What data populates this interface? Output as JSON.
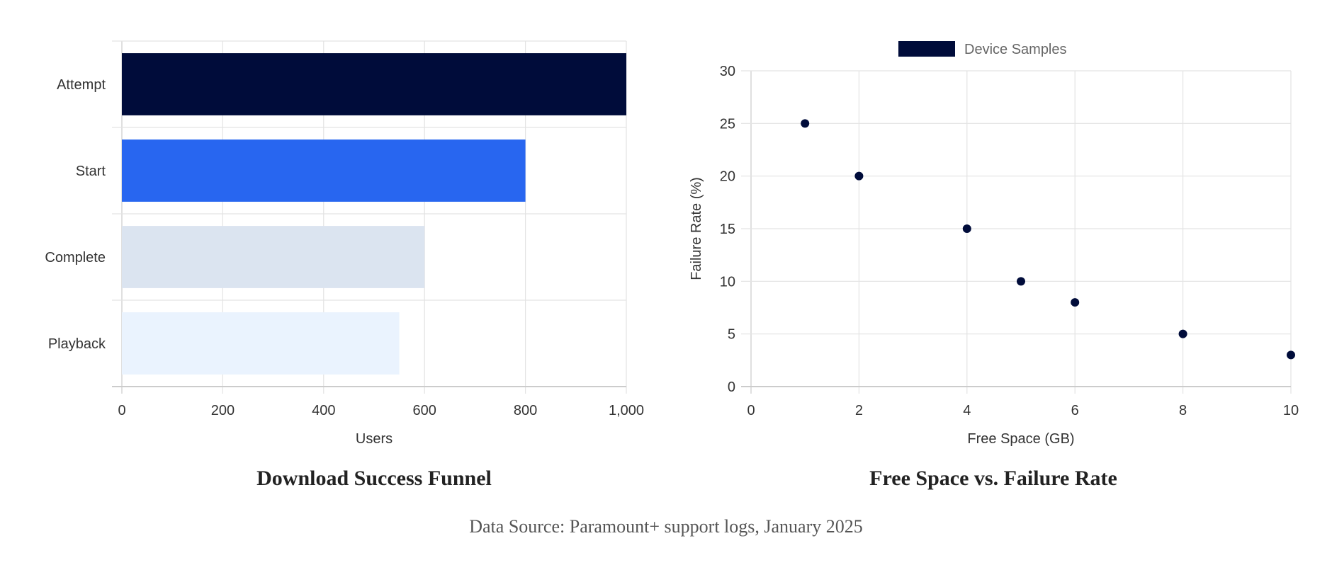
{
  "chart_data": [
    {
      "type": "bar",
      "orientation": "horizontal",
      "title": "Download Success Funnel",
      "xlabel": "Users",
      "ylabel": "",
      "categories": [
        "Attempt",
        "Start",
        "Complete",
        "Playback"
      ],
      "values": [
        1000,
        800,
        600,
        550
      ],
      "colors": [
        "#000c3a",
        "#2866f0",
        "#dbe4f0",
        "#eaf3fe"
      ],
      "xlim": [
        0,
        1000
      ],
      "xticks": [
        0,
        200,
        400,
        600,
        800,
        1000
      ],
      "xtick_labels": [
        "0",
        "200",
        "400",
        "600",
        "800",
        "1,000"
      ],
      "grid": true,
      "legend": "none"
    },
    {
      "type": "scatter",
      "title": "Free Space vs. Failure Rate",
      "xlabel": "Free Space (GB)",
      "ylabel": "Failure Rate (%)",
      "series": [
        {
          "name": "Device Samples",
          "color": "#000c3a",
          "x": [
            1,
            2,
            4,
            5,
            6,
            8,
            10
          ],
          "y": [
            25,
            20,
            15,
            10,
            8,
            5,
            3
          ]
        }
      ],
      "xlim": [
        0,
        10
      ],
      "ylim": [
        0,
        30
      ],
      "xticks": [
        "0",
        "2",
        "4",
        "6",
        "8",
        "10"
      ],
      "yticks": [
        "0",
        "5",
        "10",
        "15",
        "20",
        "25",
        "30"
      ],
      "grid": true,
      "legend": "top"
    }
  ],
  "footer": {
    "source": "Data Source: Paramount+ support logs, January 2025"
  }
}
